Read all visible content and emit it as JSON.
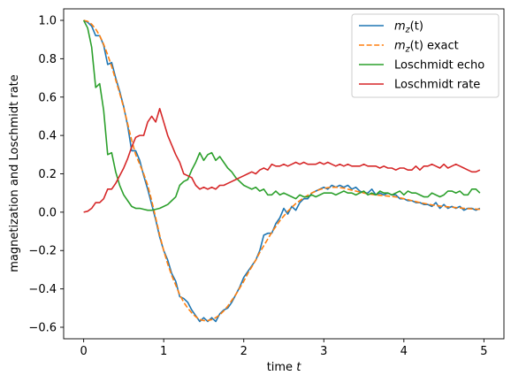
{
  "chart_data": {
    "type": "line",
    "xlabel_text": "time ",
    "xlabel_var": "t",
    "ylabel": "magnetization and Loschmidt rate",
    "xlim": [
      -0.25,
      5.25
    ],
    "ylim": [
      -0.66,
      1.06
    ],
    "xticks": [
      0,
      1,
      2,
      3,
      4,
      5
    ],
    "xtick_labels": [
      "0",
      "1",
      "2",
      "3",
      "4",
      "5"
    ],
    "yticks": [
      -0.6,
      -0.4,
      -0.2,
      0.0,
      0.2,
      0.4,
      0.6,
      0.8,
      1.0
    ],
    "ytick_labels": [
      "−0.6",
      "−0.4",
      "−0.2",
      "0.0",
      "0.2",
      "0.4",
      "0.6",
      "0.8",
      "1.0"
    ],
    "grid": false,
    "legend_position": "top-right",
    "series": [
      {
        "name_prefix": "m",
        "name_sub": "z",
        "name_suffix": "(t)",
        "color": "#1f77b4",
        "dash": "solid",
        "x": [
          0.0,
          0.05,
          0.1,
          0.15,
          0.2,
          0.25,
          0.3,
          0.35,
          0.4,
          0.45,
          0.5,
          0.55,
          0.6,
          0.65,
          0.7,
          0.75,
          0.8,
          0.85,
          0.9,
          0.95,
          1.0,
          1.05,
          1.1,
          1.15,
          1.2,
          1.25,
          1.3,
          1.35,
          1.4,
          1.45,
          1.5,
          1.55,
          1.6,
          1.65,
          1.7,
          1.75,
          1.8,
          1.85,
          1.9,
          1.95,
          2.0,
          2.05,
          2.1,
          2.15,
          2.2,
          2.25,
          2.3,
          2.35,
          2.4,
          2.45,
          2.5,
          2.55,
          2.6,
          2.65,
          2.7,
          2.75,
          2.8,
          2.85,
          2.9,
          2.95,
          3.0,
          3.05,
          3.1,
          3.15,
          3.2,
          3.25,
          3.3,
          3.35,
          3.4,
          3.45,
          3.5,
          3.55,
          3.6,
          3.65,
          3.7,
          3.75,
          3.8,
          3.85,
          3.9,
          3.95,
          4.0,
          4.05,
          4.1,
          4.15,
          4.2,
          4.25,
          4.3,
          4.35,
          4.4,
          4.45,
          4.5,
          4.55,
          4.6,
          4.65,
          4.7,
          4.75,
          4.8,
          4.85,
          4.9,
          4.95
        ],
        "y": [
          1.0,
          0.99,
          0.97,
          0.92,
          0.92,
          0.87,
          0.77,
          0.78,
          0.7,
          0.63,
          0.55,
          0.45,
          0.32,
          0.32,
          0.27,
          0.19,
          0.12,
          0.04,
          -0.04,
          -0.13,
          -0.2,
          -0.25,
          -0.32,
          -0.36,
          -0.44,
          -0.45,
          -0.47,
          -0.51,
          -0.54,
          -0.57,
          -0.55,
          -0.57,
          -0.55,
          -0.57,
          -0.53,
          -0.51,
          -0.5,
          -0.47,
          -0.43,
          -0.39,
          -0.34,
          -0.31,
          -0.28,
          -0.25,
          -0.2,
          -0.12,
          -0.11,
          -0.11,
          -0.06,
          -0.03,
          0.02,
          -0.01,
          0.03,
          0.01,
          0.05,
          0.07,
          0.07,
          0.1,
          0.11,
          0.12,
          0.13,
          0.12,
          0.14,
          0.13,
          0.14,
          0.13,
          0.14,
          0.12,
          0.13,
          0.11,
          0.1,
          0.1,
          0.12,
          0.09,
          0.1,
          0.09,
          0.1,
          0.09,
          0.09,
          0.07,
          0.07,
          0.06,
          0.06,
          0.05,
          0.05,
          0.04,
          0.04,
          0.03,
          0.05,
          0.02,
          0.04,
          0.02,
          0.03,
          0.02,
          0.03,
          0.01,
          0.02,
          0.02,
          0.01,
          0.02
        ]
      },
      {
        "name_prefix": "m",
        "name_sub": "z",
        "name_suffix": "(t) exact",
        "color": "#ff7f0e",
        "dash": "dashed",
        "x": [
          0.0,
          0.05,
          0.1,
          0.15,
          0.2,
          0.25,
          0.3,
          0.35,
          0.4,
          0.45,
          0.5,
          0.55,
          0.6,
          0.65,
          0.7,
          0.75,
          0.8,
          0.85,
          0.9,
          0.95,
          1.0,
          1.05,
          1.1,
          1.15,
          1.2,
          1.25,
          1.3,
          1.35,
          1.4,
          1.45,
          1.5,
          1.55,
          1.6,
          1.65,
          1.7,
          1.75,
          1.8,
          1.85,
          1.9,
          1.95,
          2.0,
          2.05,
          2.1,
          2.15,
          2.2,
          2.25,
          2.3,
          2.35,
          2.4,
          2.45,
          2.5,
          2.55,
          2.6,
          2.65,
          2.7,
          2.75,
          2.8,
          2.85,
          2.9,
          2.95,
          3.0,
          3.05,
          3.1,
          3.15,
          3.2,
          3.25,
          3.3,
          3.35,
          3.4,
          3.45,
          3.5,
          3.55,
          3.6,
          3.65,
          3.7,
          3.75,
          3.8,
          3.85,
          3.9,
          3.95,
          4.0,
          4.05,
          4.1,
          4.15,
          4.2,
          4.25,
          4.3,
          4.35,
          4.4,
          4.45,
          4.5,
          4.55,
          4.6,
          4.65,
          4.7,
          4.75,
          4.8,
          4.85,
          4.9,
          4.95
        ],
        "y": [
          1.0,
          0.995,
          0.98,
          0.955,
          0.92,
          0.875,
          0.82,
          0.76,
          0.69,
          0.62,
          0.545,
          0.46,
          0.375,
          0.3,
          0.25,
          0.2,
          0.14,
          0.06,
          -0.03,
          -0.12,
          -0.2,
          -0.27,
          -0.33,
          -0.38,
          -0.43,
          -0.47,
          -0.5,
          -0.525,
          -0.545,
          -0.56,
          -0.565,
          -0.565,
          -0.56,
          -0.55,
          -0.535,
          -0.515,
          -0.49,
          -0.46,
          -0.43,
          -0.395,
          -0.36,
          -0.32,
          -0.285,
          -0.25,
          -0.21,
          -0.175,
          -0.14,
          -0.105,
          -0.075,
          -0.045,
          -0.02,
          0.005,
          0.025,
          0.045,
          0.06,
          0.075,
          0.088,
          0.1,
          0.11,
          0.118,
          0.124,
          0.128,
          0.13,
          0.13,
          0.128,
          0.125,
          0.12,
          0.115,
          0.11,
          0.105,
          0.1,
          0.096,
          0.093,
          0.09,
          0.088,
          0.086,
          0.084,
          0.082,
          0.08,
          0.075,
          0.07,
          0.065,
          0.06,
          0.055,
          0.05,
          0.046,
          0.042,
          0.038,
          0.035,
          0.032,
          0.03,
          0.028,
          0.026,
          0.024,
          0.022,
          0.02,
          0.018,
          0.017,
          0.016,
          0.015
        ]
      },
      {
        "name": "Loschmidt echo",
        "color": "#2ca02c",
        "dash": "solid",
        "x": [
          0.0,
          0.05,
          0.1,
          0.15,
          0.2,
          0.25,
          0.3,
          0.35,
          0.4,
          0.45,
          0.5,
          0.55,
          0.6,
          0.65,
          0.7,
          0.75,
          0.8,
          0.85,
          0.9,
          0.95,
          1.0,
          1.05,
          1.1,
          1.15,
          1.2,
          1.25,
          1.3,
          1.35,
          1.4,
          1.45,
          1.5,
          1.55,
          1.6,
          1.65,
          1.7,
          1.75,
          1.8,
          1.85,
          1.9,
          1.95,
          2.0,
          2.05,
          2.1,
          2.15,
          2.2,
          2.25,
          2.3,
          2.35,
          2.4,
          2.45,
          2.5,
          2.55,
          2.6,
          2.65,
          2.7,
          2.75,
          2.8,
          2.85,
          2.9,
          2.95,
          3.0,
          3.05,
          3.1,
          3.15,
          3.2,
          3.25,
          3.3,
          3.35,
          3.4,
          3.45,
          3.5,
          3.55,
          3.6,
          3.65,
          3.7,
          3.75,
          3.8,
          3.85,
          3.9,
          3.95,
          4.0,
          4.05,
          4.1,
          4.15,
          4.2,
          4.25,
          4.3,
          4.35,
          4.4,
          4.45,
          4.5,
          4.55,
          4.6,
          4.65,
          4.7,
          4.75,
          4.8,
          4.85,
          4.9,
          4.95
        ],
        "y": [
          1.0,
          0.96,
          0.86,
          0.65,
          0.67,
          0.53,
          0.3,
          0.31,
          0.21,
          0.14,
          0.09,
          0.06,
          0.03,
          0.02,
          0.02,
          0.015,
          0.01,
          0.01,
          0.015,
          0.02,
          0.03,
          0.04,
          0.06,
          0.08,
          0.14,
          0.16,
          0.17,
          0.22,
          0.26,
          0.31,
          0.27,
          0.3,
          0.31,
          0.27,
          0.29,
          0.26,
          0.23,
          0.21,
          0.18,
          0.16,
          0.14,
          0.13,
          0.12,
          0.13,
          0.11,
          0.12,
          0.09,
          0.09,
          0.11,
          0.09,
          0.1,
          0.09,
          0.08,
          0.07,
          0.09,
          0.08,
          0.08,
          0.09,
          0.08,
          0.09,
          0.1,
          0.1,
          0.1,
          0.09,
          0.1,
          0.11,
          0.1,
          0.1,
          0.09,
          0.1,
          0.11,
          0.09,
          0.1,
          0.09,
          0.11,
          0.1,
          0.1,
          0.09,
          0.1,
          0.11,
          0.09,
          0.11,
          0.1,
          0.1,
          0.09,
          0.08,
          0.08,
          0.1,
          0.09,
          0.08,
          0.09,
          0.11,
          0.11,
          0.1,
          0.11,
          0.09,
          0.09,
          0.12,
          0.12,
          0.1
        ]
      },
      {
        "name": "Loschmidt rate",
        "color": "#d62728",
        "dash": "solid",
        "x": [
          0.0,
          0.05,
          0.1,
          0.15,
          0.2,
          0.25,
          0.3,
          0.35,
          0.4,
          0.45,
          0.5,
          0.55,
          0.6,
          0.65,
          0.7,
          0.75,
          0.8,
          0.85,
          0.9,
          0.95,
          1.0,
          1.05,
          1.1,
          1.15,
          1.2,
          1.25,
          1.3,
          1.35,
          1.4,
          1.45,
          1.5,
          1.55,
          1.6,
          1.65,
          1.7,
          1.75,
          1.8,
          1.85,
          1.9,
          1.95,
          2.0,
          2.05,
          2.1,
          2.15,
          2.2,
          2.25,
          2.3,
          2.35,
          2.4,
          2.45,
          2.5,
          2.55,
          2.6,
          2.65,
          2.7,
          2.75,
          2.8,
          2.85,
          2.9,
          2.95,
          3.0,
          3.05,
          3.1,
          3.15,
          3.2,
          3.25,
          3.3,
          3.35,
          3.4,
          3.45,
          3.5,
          3.55,
          3.6,
          3.65,
          3.7,
          3.75,
          3.8,
          3.85,
          3.9,
          3.95,
          4.0,
          4.05,
          4.1,
          4.15,
          4.2,
          4.25,
          4.3,
          4.35,
          4.4,
          4.45,
          4.5,
          4.55,
          4.6,
          4.65,
          4.7,
          4.75,
          4.8,
          4.85,
          4.9,
          4.95
        ],
        "y": [
          0.0,
          0.005,
          0.02,
          0.05,
          0.05,
          0.07,
          0.12,
          0.12,
          0.15,
          0.19,
          0.23,
          0.28,
          0.34,
          0.39,
          0.4,
          0.4,
          0.47,
          0.5,
          0.47,
          0.54,
          0.47,
          0.4,
          0.35,
          0.3,
          0.26,
          0.2,
          0.19,
          0.18,
          0.14,
          0.12,
          0.13,
          0.12,
          0.13,
          0.12,
          0.14,
          0.14,
          0.15,
          0.16,
          0.17,
          0.18,
          0.19,
          0.2,
          0.21,
          0.2,
          0.22,
          0.23,
          0.22,
          0.25,
          0.24,
          0.24,
          0.25,
          0.24,
          0.25,
          0.26,
          0.25,
          0.26,
          0.25,
          0.25,
          0.25,
          0.26,
          0.25,
          0.26,
          0.25,
          0.24,
          0.25,
          0.24,
          0.25,
          0.24,
          0.24,
          0.24,
          0.25,
          0.24,
          0.24,
          0.24,
          0.23,
          0.24,
          0.23,
          0.23,
          0.22,
          0.23,
          0.23,
          0.22,
          0.22,
          0.24,
          0.22,
          0.24,
          0.24,
          0.25,
          0.24,
          0.23,
          0.25,
          0.23,
          0.24,
          0.25,
          0.24,
          0.23,
          0.22,
          0.21,
          0.21,
          0.22
        ]
      }
    ]
  }
}
